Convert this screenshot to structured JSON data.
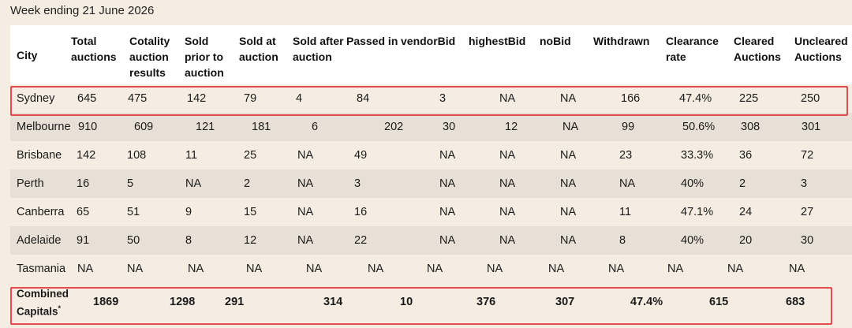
{
  "caption": "Week ending 21 June 2026",
  "headers": [
    "City",
    "Total auctions",
    "Cotality auction results",
    "Sold prior to auction",
    "Sold at auction",
    "Sold after auction",
    "Passed in",
    "vendorBid",
    "highestBid",
    "noBid",
    "Withdrawn",
    "Clearance rate",
    "Cleared Auctions",
    "Uncleared Auctions"
  ],
  "rows": [
    [
      "Sydney",
      "645",
      "475",
      "142",
      "79",
      "4",
      "84",
      "3",
      "NA",
      "NA",
      "166",
      "47.4%",
      "225",
      "250"
    ],
    [
      "Melbourne",
      "910",
      "609",
      "121",
      "181",
      "6",
      "202",
      "30",
      "12",
      "NA",
      "99",
      "50.6%",
      "308",
      "301"
    ],
    [
      "Brisbane",
      "142",
      "108",
      "11",
      "25",
      "NA",
      "49",
      "NA",
      "NA",
      "NA",
      "23",
      "33.3%",
      "36",
      "72"
    ],
    [
      "Perth",
      "16",
      "5",
      "NA",
      "2",
      "NA",
      "3",
      "NA",
      "NA",
      "NA",
      "NA",
      "40%",
      "2",
      "3"
    ],
    [
      "Canberra",
      "65",
      "51",
      "9",
      "15",
      "NA",
      "16",
      "NA",
      "NA",
      "NA",
      "11",
      "47.1%",
      "24",
      "27"
    ],
    [
      "Adelaide",
      "91",
      "50",
      "8",
      "12",
      "NA",
      "22",
      "NA",
      "NA",
      "NA",
      "8",
      "40%",
      "20",
      "30"
    ],
    [
      "Tasmania",
      "NA",
      "NA",
      "NA",
      "NA",
      "NA",
      "NA",
      "NA",
      "NA",
      "NA",
      "NA",
      "NA",
      "NA",
      "NA"
    ]
  ],
  "combined": {
    "label_line1": "Combined",
    "label_line2": "Capitals",
    "footnote_mark": "*",
    "values": [
      "1869",
      "1298",
      "291",
      "314",
      "10",
      "376",
      "307",
      "47.4%",
      "615",
      "683"
    ]
  },
  "colors": {
    "highlight": "#e5484d",
    "background": "#f6ede2",
    "stripe": "#e8e0d6",
    "header_bg": "#ffffff"
  }
}
